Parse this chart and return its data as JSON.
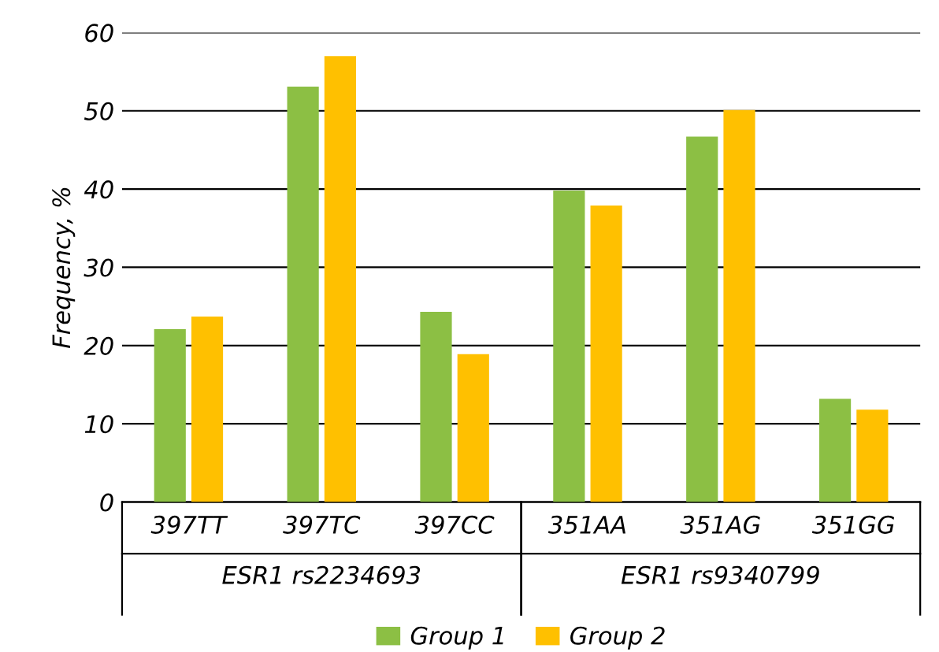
{
  "chart_data": {
    "type": "bar",
    "ylabel": "Frequency, %",
    "categories": [
      "397TT",
      "397TC",
      "397CC",
      "351AA",
      "351AG",
      "351GG"
    ],
    "series": [
      {
        "name": "Group 1",
        "color": "#8cbf44",
        "values": [
          22.1,
          53.1,
          24.3,
          39.8,
          46.7,
          13.2
        ]
      },
      {
        "name": "Group 2",
        "color": "#ffc000",
        "values": [
          23.7,
          57.0,
          18.9,
          37.9,
          50.1,
          11.8
        ]
      }
    ],
    "annotations": [
      "ESR1 rs2234693",
      "ESR1 rs9340799"
    ],
    "ylim": [
      0,
      60
    ],
    "yticks": [
      0,
      10,
      20,
      30,
      40,
      50,
      60
    ],
    "grid": "y",
    "legend": "bottom"
  }
}
